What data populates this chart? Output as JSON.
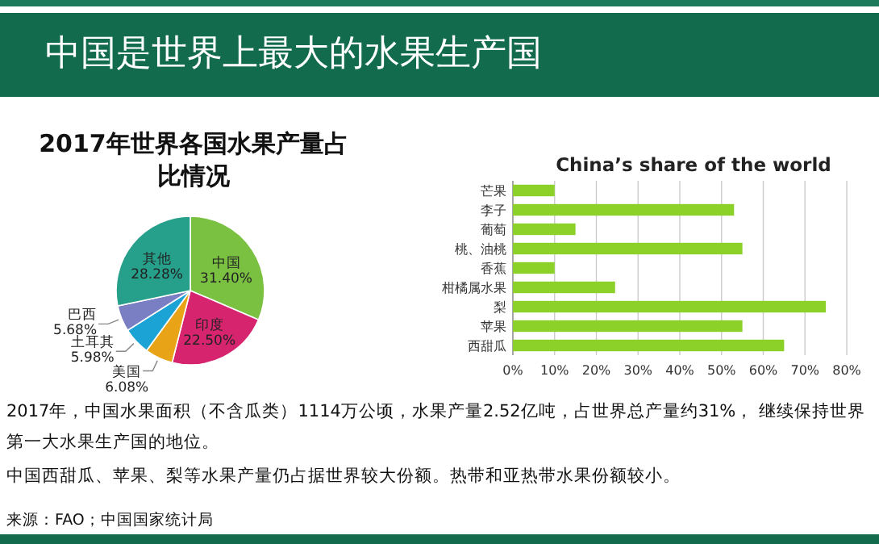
{
  "chart_data": [
    {
      "type": "other",
      "title": "中国是世界上最大的水果生产国",
      "annotations": [
        "2017年，中国水果面积（不含瓜类）1114万公顷，水果产量2.52亿吨，占世界总产量约31%， 继续保持世界第一大水果生产国的地位。",
        "中国西甜瓜、苹果、梨等水果产量仍占据世界较大份额。热带和亚热带水果份额较小。",
        "来源：FAO；中国国家统计局"
      ]
    },
    {
      "type": "pie",
      "title": "2017年世界各国水果产量占比情况",
      "categories": [
        "中国",
        "印度",
        "美国",
        "土耳其",
        "巴西",
        "其他"
      ],
      "values": [
        31.4,
        22.5,
        6.08,
        5.98,
        5.68,
        28.28
      ],
      "value_labels": [
        "31.40%",
        "22.50%",
        "6.08%",
        "5.98%",
        "5.68%",
        "28.28%"
      ],
      "colors": [
        "#7ac142",
        "#d6246e",
        "#e8a317",
        "#1aa3d4",
        "#7a7fc4",
        "#26a08a"
      ]
    },
    {
      "type": "bar",
      "orientation": "horizontal",
      "title": "China’s share of the world",
      "categories": [
        "芒果",
        "李子",
        "葡萄",
        "桃、油桃",
        "香蕉",
        "柑橘属水果",
        "梨",
        "苹果",
        "西甜瓜"
      ],
      "values": [
        10,
        53,
        15,
        55,
        10,
        24.5,
        75,
        55,
        65
      ],
      "color": "#8cd12a",
      "xlim": [
        0,
        80
      ],
      "xticks": [
        {
          "value": 0,
          "label": "0%"
        },
        {
          "value": 10,
          "label": "10%"
        },
        {
          "value": 20,
          "label": "20%"
        },
        {
          "value": 30,
          "label": "30%"
        },
        {
          "value": 40,
          "label": "40%"
        },
        {
          "value": 50,
          "label": "50%"
        },
        {
          "value": 60,
          "label": "60%"
        },
        {
          "value": 70,
          "label": "70%"
        },
        {
          "value": 80,
          "label": "80%"
        }
      ],
      "grid": "x"
    }
  ]
}
